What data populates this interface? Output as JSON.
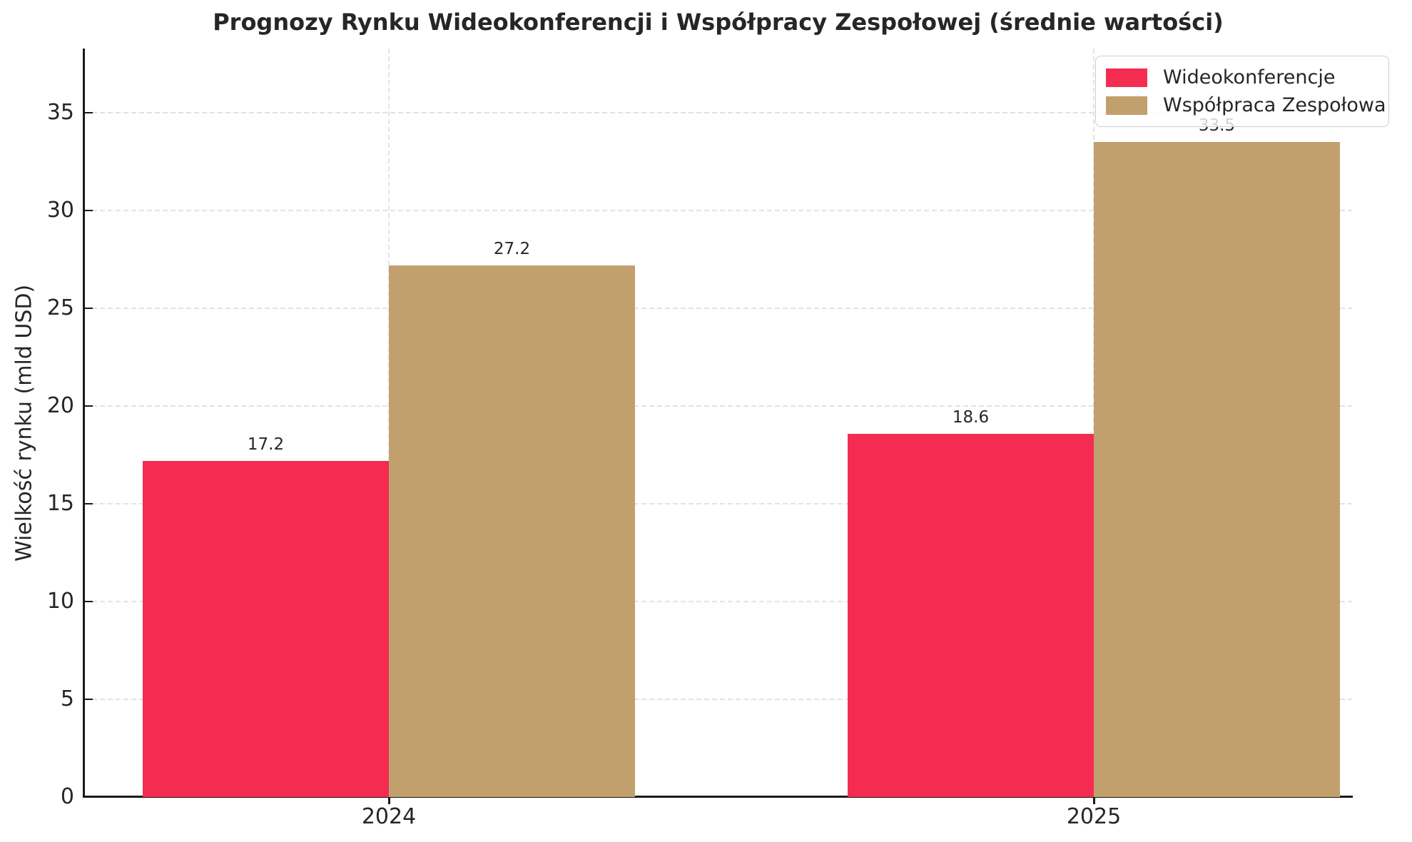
{
  "title": "Prognozy Rynku Wideokonferencji i Współpracy Zespołowej (średnie wartości)",
  "chart_data": {
    "type": "bar",
    "categories": [
      "2024",
      "2025"
    ],
    "series": [
      {
        "name": "Wideokonferencje",
        "color": "#F42C52",
        "values": [
          17.2,
          18.6
        ]
      },
      {
        "name": "Współpraca Zespołowa",
        "color": "#C2A06E",
        "values": [
          27.2,
          33.5
        ]
      }
    ],
    "value_labels": [
      [
        "17.2",
        "18.6"
      ],
      [
        "27.2",
        "33.5"
      ]
    ],
    "title": "Prognozy Rynku Wideokonferencji i Współpracy Zespołowej (średnie wartości)",
    "xlabel": "",
    "ylabel": "Wielkość rynku (mld USD)",
    "ylim": [
      0,
      38.3
    ],
    "yticks": [
      0,
      5,
      10,
      15,
      20,
      25,
      30,
      35
    ],
    "grid": {
      "horizontal": true,
      "vertical": true,
      "style": "dashed"
    },
    "legend_position": "upper right"
  },
  "colors": {
    "series_videoconf": "#F42C52",
    "series_collab": "#C2A06E",
    "axis_spine": "#1a1a1a",
    "text": "#262626",
    "gridline": "#e3e3e3",
    "legend_border": "#cccccc",
    "background": "#ffffff"
  }
}
